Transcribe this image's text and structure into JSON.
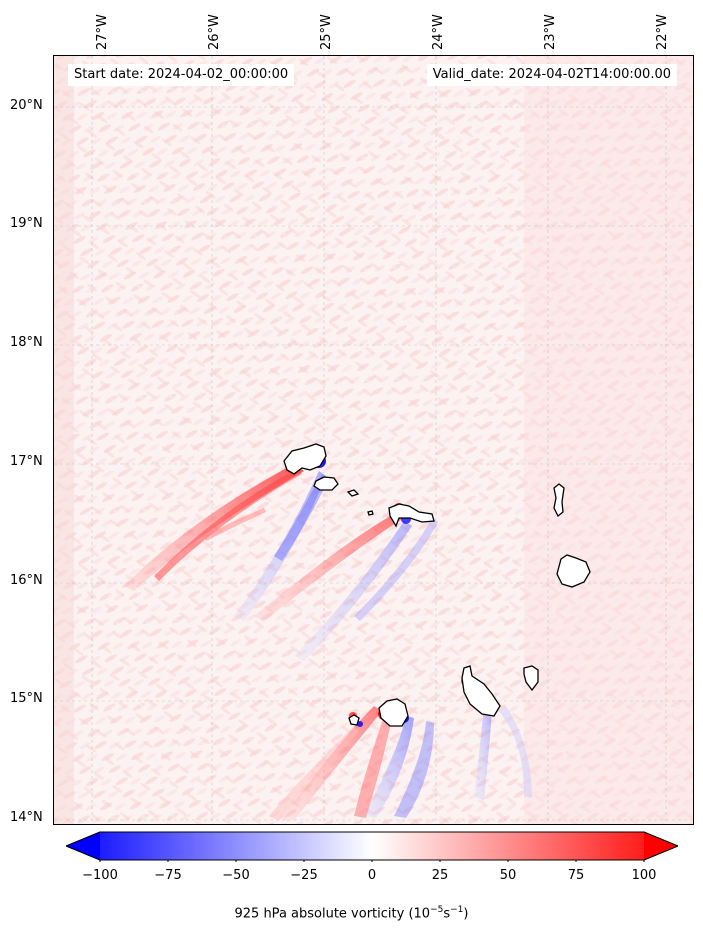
{
  "map": {
    "lon_labels": [
      "27°W",
      "26°W",
      "25°W",
      "24°W",
      "23°W",
      "22°W"
    ],
    "lat_labels": [
      "20°N",
      "19°N",
      "18°N",
      "17°N",
      "16°N",
      "15°N",
      "14°N"
    ],
    "start_date": "Start date: 2024-04-02_00:00:00",
    "valid_date": "Valid_date: 2024-04-02T14:00:00.00"
  },
  "colorbar": {
    "ticks": [
      "−100",
      "−75",
      "−50",
      "−25",
      "0",
      "25",
      "50",
      "75",
      "100"
    ],
    "label": "925 hPa absolute vorticity (10",
    "label_exp1": "−5",
    "label_mid": "s",
    "label_exp2": "−1",
    "label_end": ")",
    "min_color": "#0000ff",
    "mid_color": "#ffffff",
    "max_color": "#ff0000"
  }
}
